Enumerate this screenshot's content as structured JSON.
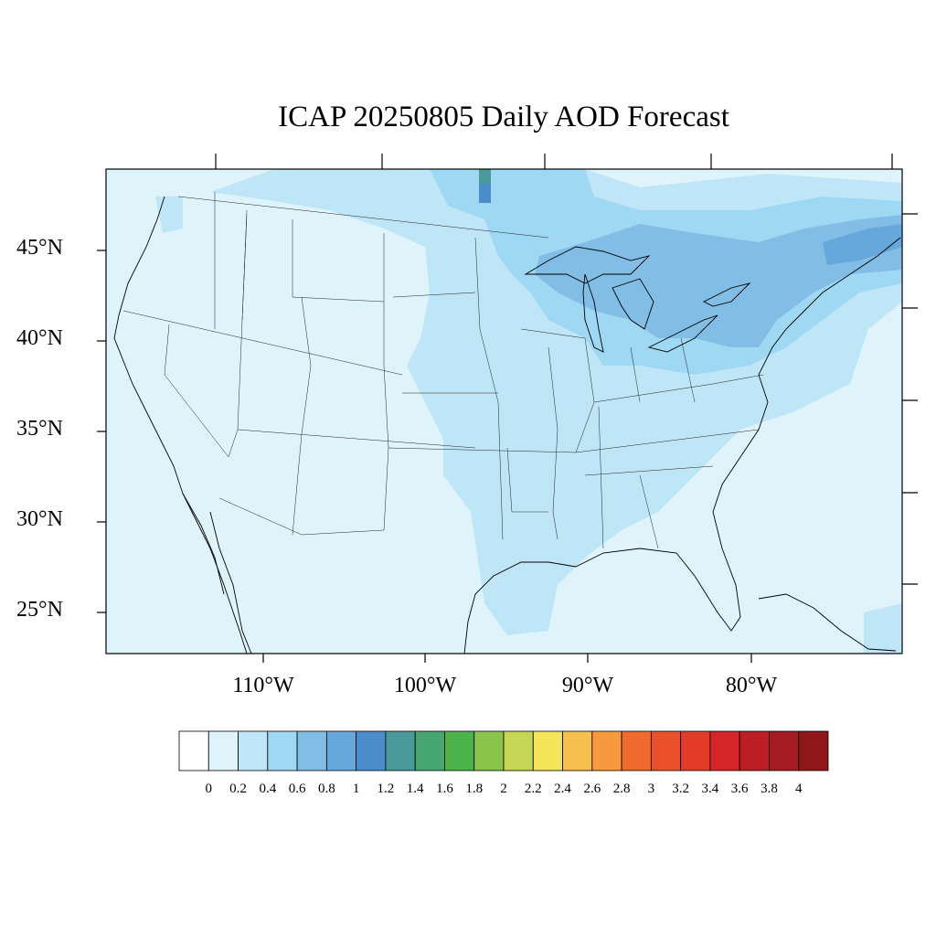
{
  "title": "ICAP 20250805 Daily AOD Forecast",
  "map": {
    "lat_labels": [
      "45°N",
      "40°N",
      "35°N",
      "30°N",
      "25°N"
    ],
    "lon_labels": [
      "110°W",
      "100°W",
      "90°W",
      "80°W"
    ],
    "background_color": "#dff3fb"
  },
  "colorbar": {
    "labels": [
      "0",
      "0.2",
      "0.4",
      "0.6",
      "0.8",
      "1",
      "1.2",
      "1.4",
      "1.6",
      "1.8",
      "2",
      "2.2",
      "2.4",
      "2.6",
      "2.8",
      "3",
      "3.2",
      "3.4",
      "3.6",
      "3.8",
      "4"
    ],
    "colors": [
      "#ffffff",
      "#dff3fb",
      "#bfe6f7",
      "#9fd8f3",
      "#81bde5",
      "#67a8dc",
      "#4b8dcb",
      "#4a9a9c",
      "#47a56f",
      "#4bb34a",
      "#89c54d",
      "#c5d554",
      "#f5e55a",
      "#f7bf4b",
      "#f69a3d",
      "#f16a2d",
      "#ea5129",
      "#e23c28",
      "#d62428",
      "#bd1d24",
      "#a51b21",
      "#8f1619"
    ]
  }
}
